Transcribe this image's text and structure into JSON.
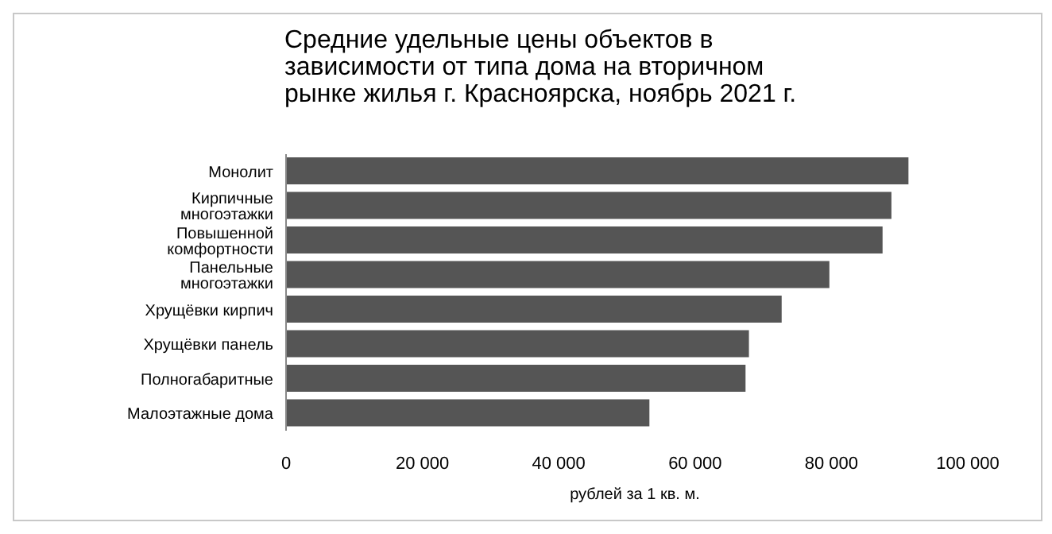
{
  "chart_data": {
    "type": "bar",
    "orientation": "horizontal",
    "title": "Средние удельные цены объектов в зависимости от типа дома на вторичном рынке жилья г. Красноярска, ноябрь 2021 г.",
    "xlabel": "рублей за 1 кв. м.",
    "categories": [
      "Монолит",
      "Кирпичные многоэтажки",
      "Повышенной комфортности",
      "Панельные многоэтажки",
      "Хрущёвки кирпич",
      "Хрущёвки панель",
      "Полногабаритные",
      "Малоэтажные дома"
    ],
    "values": [
      91300,
      88800,
      87500,
      79700,
      72700,
      67900,
      67400,
      53300
    ],
    "color": "#555555",
    "xlim": [
      0,
      100000
    ],
    "xticks": [
      {
        "value": 0,
        "label": "0"
      },
      {
        "value": 20000,
        "label": "20 000"
      },
      {
        "value": 40000,
        "label": "40 000"
      },
      {
        "value": 60000,
        "label": "60 000"
      },
      {
        "value": 80000,
        "label": "80 000"
      },
      {
        "value": 100000,
        "label": "100 000"
      }
    ],
    "grid": false,
    "legend": false
  }
}
